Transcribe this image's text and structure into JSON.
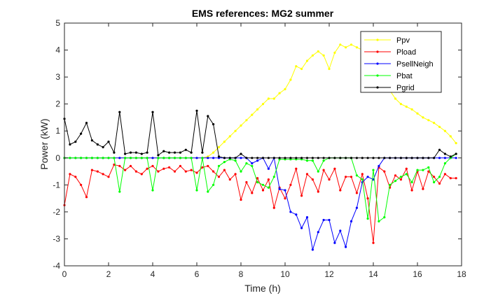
{
  "chart_data": {
    "type": "line",
    "title": "EMS references: MG2 summer",
    "xlabel": "Time (h)",
    "ylabel": "Power (kW)",
    "xlim": [
      0,
      18
    ],
    "ylim": [
      -4,
      5
    ],
    "xticks": [
      0,
      2,
      4,
      6,
      8,
      10,
      12,
      14,
      16,
      18
    ],
    "yticks": [
      -4,
      -3,
      -2,
      -1,
      0,
      1,
      2,
      3,
      4,
      5
    ],
    "grid": false,
    "legend_position": "top-right",
    "x": [
      0,
      0.25,
      0.5,
      0.75,
      1,
      1.25,
      1.5,
      1.75,
      2,
      2.25,
      2.5,
      2.75,
      3,
      3.25,
      3.5,
      3.75,
      4,
      4.25,
      4.5,
      4.75,
      5,
      5.25,
      5.5,
      5.75,
      6,
      6.25,
      6.5,
      6.75,
      7,
      7.25,
      7.5,
      7.75,
      8,
      8.25,
      8.5,
      8.75,
      9,
      9.25,
      9.5,
      9.75,
      10,
      10.25,
      10.5,
      10.75,
      11,
      11.25,
      11.5,
      11.75,
      12,
      12.25,
      12.5,
      12.75,
      13,
      13.25,
      13.5,
      13.75,
      14,
      14.25,
      14.5,
      14.75,
      15,
      15.25,
      15.5,
      15.75,
      16,
      16.25,
      16.5,
      16.75,
      17,
      17.25,
      17.5,
      17.75
    ],
    "series": [
      {
        "name": "Ppv",
        "color": "#ffff00",
        "values": [
          0,
          0,
          0,
          0,
          0,
          0,
          0,
          0,
          0,
          0,
          0,
          0,
          0,
          0,
          0,
          0,
          0,
          0,
          0,
          0,
          0,
          0,
          0,
          0,
          0,
          0,
          0.05,
          0.2,
          0.4,
          0.6,
          0.8,
          1.0,
          1.2,
          1.4,
          1.6,
          1.8,
          2.0,
          2.2,
          2.2,
          2.4,
          2.55,
          2.9,
          3.4,
          3.3,
          3.6,
          3.8,
          3.95,
          3.8,
          3.3,
          3.9,
          4.2,
          4.1,
          4.2,
          4.1,
          4.0,
          3.8,
          3.6,
          3.2,
          2.8,
          2.5,
          2.2,
          2.0,
          1.9,
          1.8,
          1.65,
          1.5,
          1.4,
          1.3,
          1.15,
          1.0,
          0.8,
          0.55
        ]
      },
      {
        "name": "Pload",
        "color": "#ff0000",
        "values": [
          -1.75,
          -0.6,
          -0.7,
          -1.0,
          -1.45,
          -0.45,
          -0.5,
          -0.6,
          -0.7,
          -0.25,
          -0.3,
          -0.45,
          -0.3,
          -0.5,
          -0.6,
          -0.4,
          -0.3,
          -0.5,
          -0.4,
          -0.35,
          -0.5,
          -0.3,
          -0.5,
          -0.45,
          -0.55,
          -0.35,
          -0.3,
          -0.5,
          -0.7,
          -0.45,
          -0.8,
          -0.6,
          -1.55,
          -0.9,
          -1.3,
          -0.75,
          -1.2,
          -0.8,
          -1.85,
          -1.1,
          -1.5,
          -1.0,
          -0.4,
          -1.4,
          -0.6,
          -0.8,
          -1.25,
          -0.45,
          -0.8,
          -0.4,
          -1.2,
          -0.7,
          -0.7,
          -1.3,
          -0.6,
          -1.5,
          -3.15,
          -0.35,
          -0.5,
          -1.1,
          -0.65,
          -0.8,
          -0.4,
          -1.2,
          -0.5,
          -1.15,
          -0.5,
          -0.7,
          -0.95,
          -0.6,
          -0.75,
          -0.75
        ]
      },
      {
        "name": "PsellNeigh",
        "color": "#0000ff",
        "values": [
          0,
          0,
          0,
          0,
          0,
          0,
          0,
          0,
          0,
          0,
          0,
          0,
          0,
          0,
          0,
          0,
          0,
          0,
          0,
          0,
          0,
          0,
          0,
          0,
          0,
          0,
          0,
          0,
          0,
          0,
          0,
          0,
          0,
          0,
          -0.2,
          -0.1,
          0,
          -0.4,
          0,
          -1.15,
          -1.2,
          -2.0,
          -2.1,
          -2.6,
          -2.2,
          -3.4,
          -2.75,
          -2.3,
          -2.3,
          -3.15,
          -2.7,
          -3.3,
          -2.35,
          -1.85,
          -0.9,
          -0.7,
          -0.8,
          -0.3,
          0,
          0,
          0,
          0,
          0,
          0,
          0,
          0,
          0,
          0,
          0,
          0,
          0,
          0
        ]
      },
      {
        "name": "Pbat",
        "color": "#00ff00",
        "values": [
          0,
          0,
          0,
          0,
          0,
          0,
          0,
          0,
          0,
          0,
          -1.25,
          0,
          0,
          0,
          0,
          0,
          -1.2,
          0,
          0,
          0,
          0,
          0,
          0,
          0,
          -1.2,
          0,
          -1.25,
          -1.0,
          -0.3,
          -0.15,
          -0.05,
          -0.1,
          -0.5,
          -0.2,
          -0.3,
          -0.9,
          -1.0,
          -1.1,
          -0.7,
          -0.05,
          -0.05,
          -0.05,
          -0.05,
          -0.05,
          -0.1,
          -0.1,
          -0.5,
          -0.1,
          0,
          0,
          0,
          0,
          0,
          -0.65,
          -0.8,
          -2.25,
          -0.45,
          -2.35,
          -2.2,
          -1.0,
          -0.85,
          -0.7,
          -0.6,
          -0.9,
          -0.45,
          -0.45,
          -0.35,
          -0.9,
          -0.7,
          -0.2,
          0,
          0.15
        ]
      },
      {
        "name": "Pgrid",
        "color": "#000000",
        "values": [
          1.45,
          0.5,
          0.6,
          0.9,
          1.3,
          0.65,
          0.5,
          0.4,
          0.6,
          0.2,
          1.7,
          0.15,
          0.2,
          0.2,
          0.15,
          0.2,
          1.7,
          0.1,
          0.25,
          0.2,
          0.2,
          0.2,
          0.3,
          0.2,
          1.75,
          0.2,
          1.55,
          1.25,
          0.05,
          0,
          0,
          0,
          0.15,
          0,
          0,
          0,
          0,
          0,
          0,
          0,
          0,
          0,
          0,
          0,
          0,
          0,
          0,
          0,
          0,
          0,
          0,
          0,
          0,
          0,
          0,
          0,
          0,
          0,
          0,
          0,
          0,
          0,
          0,
          0,
          0,
          0,
          0,
          0,
          0.3,
          0.15,
          0.05,
          0.15
        ]
      }
    ]
  }
}
